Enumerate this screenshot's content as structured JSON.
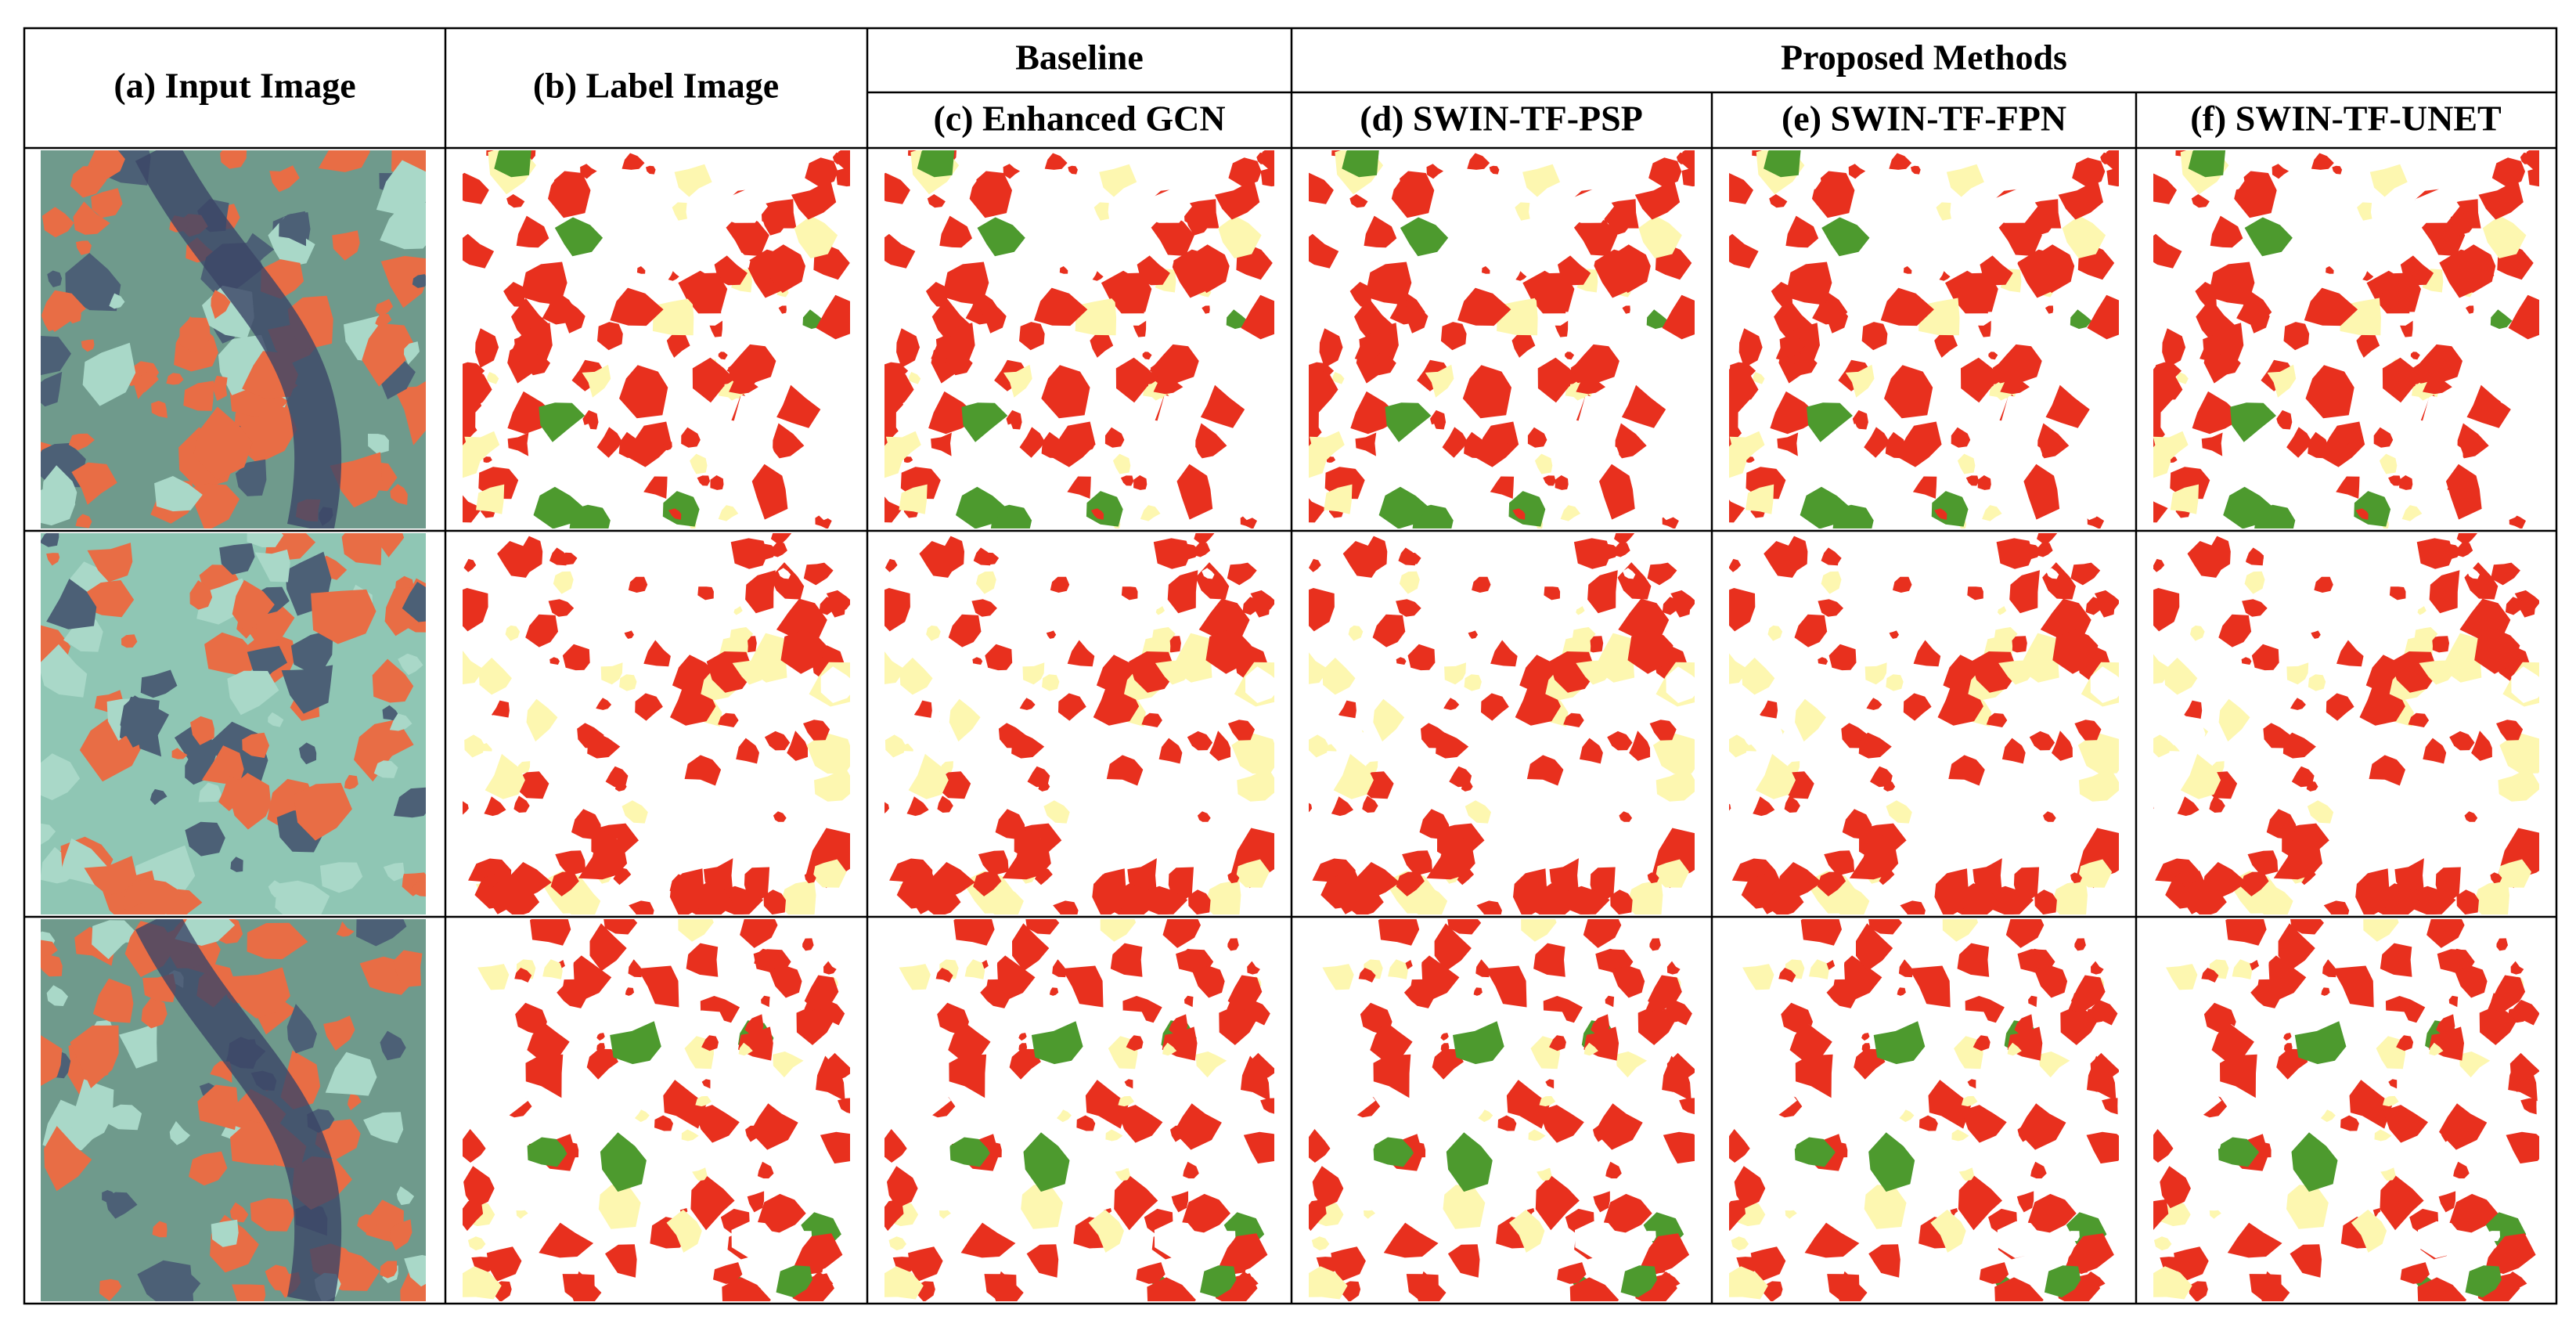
{
  "header": {
    "groups": [
      "Baseline",
      "Proposed Methods"
    ],
    "columns": [
      "(a) Input Image",
      "(b) Label Image",
      "(c) Enhanced GCN",
      "(d) SWIN-TF-PSP",
      "(e) SWIN-TF-FPN",
      "(f) SWIN-TF-UNET"
    ]
  }
}
